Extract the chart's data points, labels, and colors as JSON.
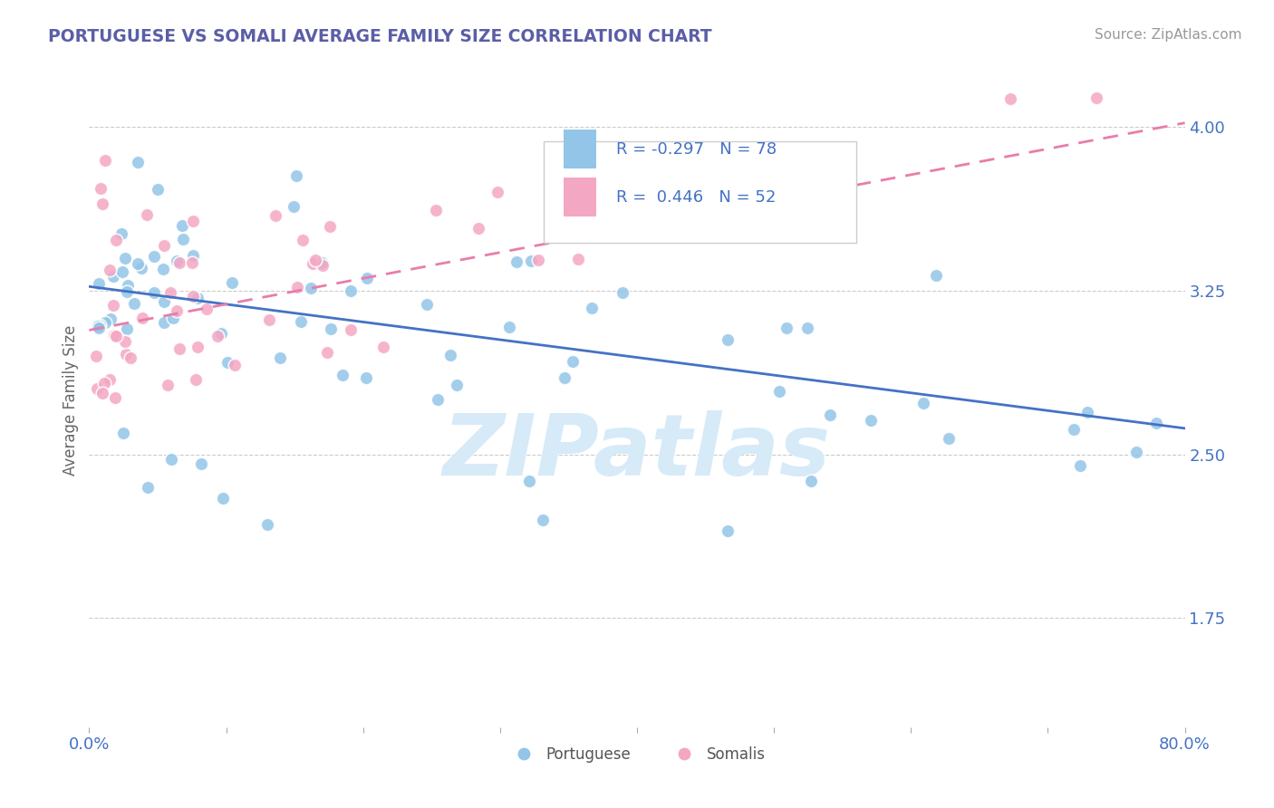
{
  "title": "PORTUGUESE VS SOMALI AVERAGE FAMILY SIZE CORRELATION CHART",
  "source": "Source: ZipAtlas.com",
  "ylabel": "Average Family Size",
  "xmin": 0.0,
  "xmax": 0.8,
  "ymin": 1.25,
  "ymax": 4.25,
  "yticks": [
    1.75,
    2.5,
    3.25,
    4.0
  ],
  "portuguese_color": "#92C5E8",
  "somali_color": "#F4A7C3",
  "portuguese_line_color": "#4472C4",
  "somali_line_color": "#E87DAA",
  "title_color": "#5B5EA6",
  "axis_color": "#4472C4",
  "legend_line1": "R = -0.297   N = 78",
  "legend_line2": "R =  0.446   N = 52",
  "watermark_text": "ZIPatlas",
  "watermark_color": "#D6EAF8",
  "port_line_y0": 3.27,
  "port_line_y1": 2.62,
  "som_line_y0": 3.07,
  "som_line_y1": 4.02
}
